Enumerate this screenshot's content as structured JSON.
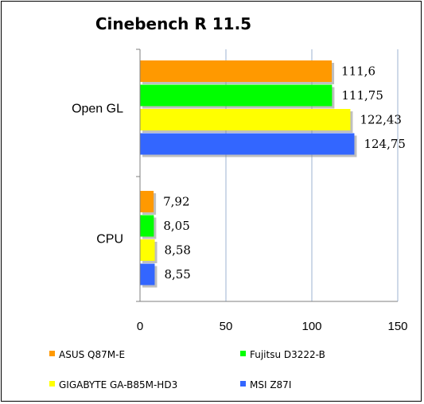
{
  "chart_data": {
    "type": "bar",
    "orientation": "horizontal",
    "title": "Cinebench R 11.5",
    "categories": [
      "Open GL",
      "CPU"
    ],
    "series": [
      {
        "name": "ASUS Q87M-E",
        "color": "#FF9900",
        "values": [
          111.6,
          7.92
        ],
        "labels": [
          "111,6",
          "7,92"
        ]
      },
      {
        "name": "Fujitsu D3222-B",
        "color": "#00FF00",
        "values": [
          111.75,
          8.05
        ],
        "labels": [
          "111,75",
          "8,05"
        ]
      },
      {
        "name": "GIGABYTE GA-B85M-HD3",
        "color": "#FFFF00",
        "values": [
          122.43,
          8.58
        ],
        "labels": [
          "122,43",
          "8,58"
        ]
      },
      {
        "name": "MSI Z87I",
        "color": "#3366FF",
        "values": [
          124.75,
          8.55
        ],
        "labels": [
          "124,75",
          "8,55"
        ]
      }
    ],
    "xlim": [
      0,
      150
    ],
    "xticks": [
      0,
      50,
      100,
      150
    ],
    "grid": true,
    "legend_position": "bottom"
  }
}
